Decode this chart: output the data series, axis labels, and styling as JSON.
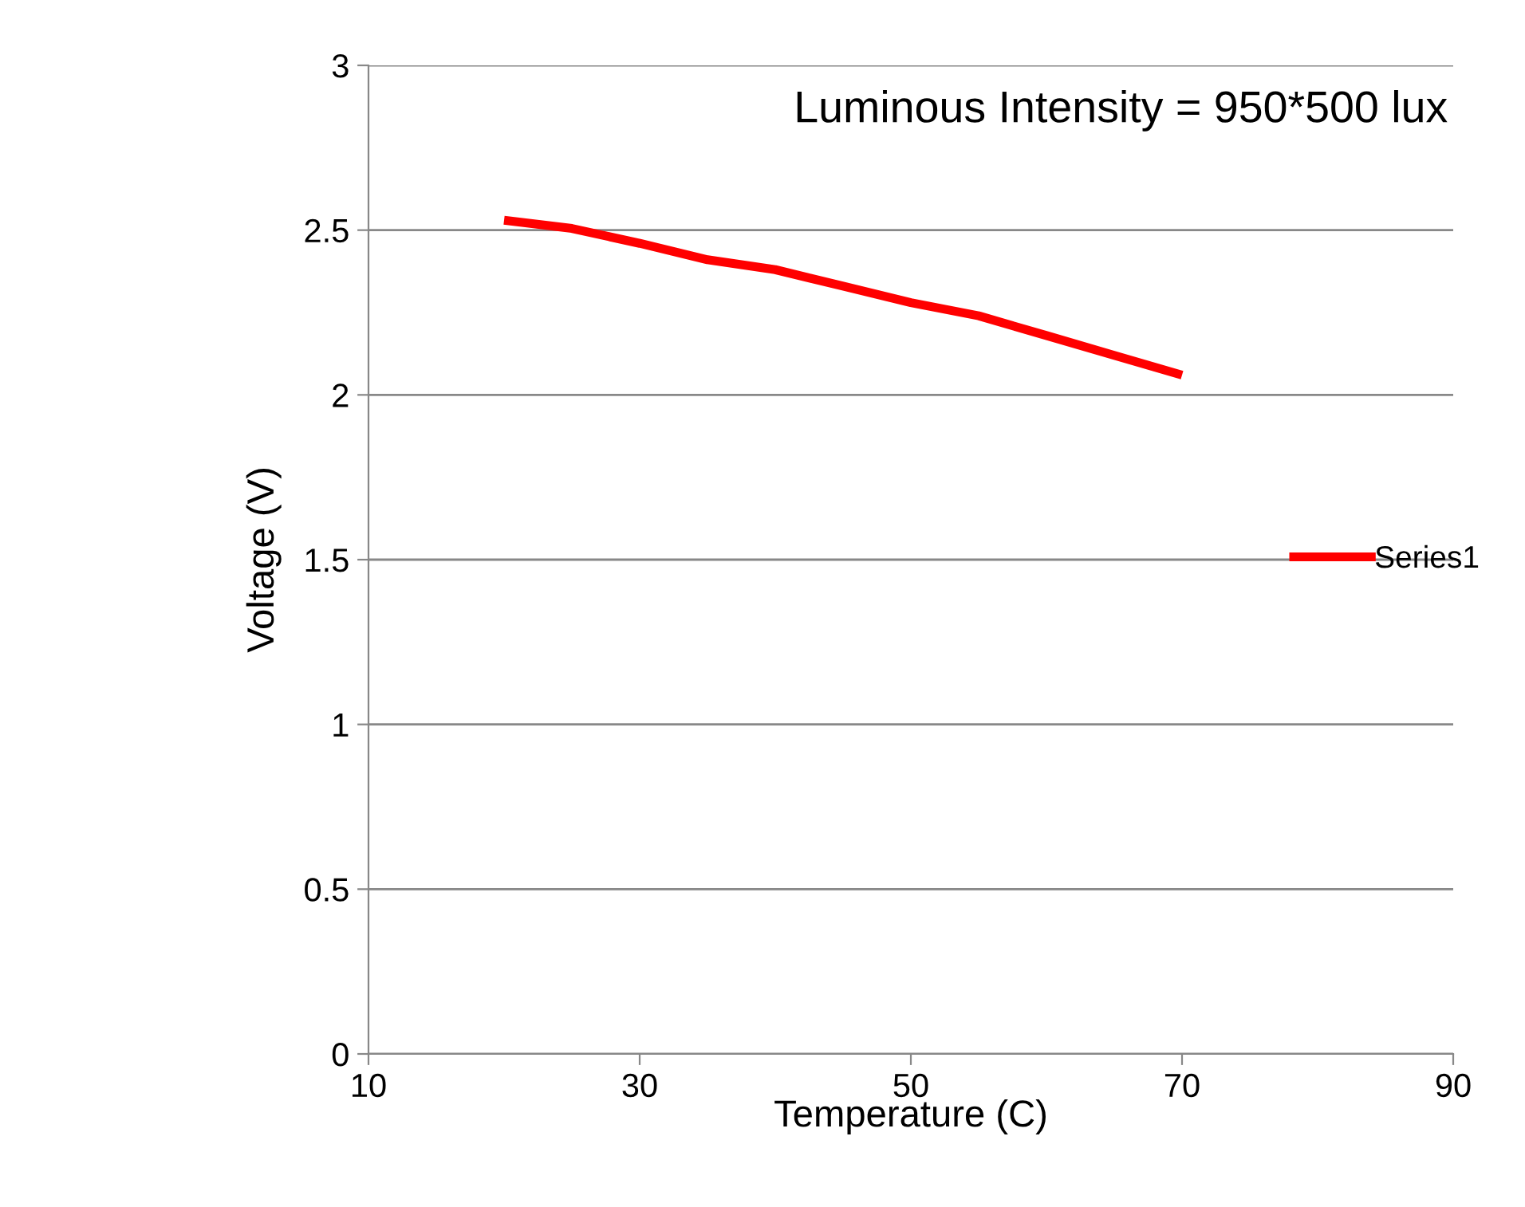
{
  "chart_data": {
    "type": "line",
    "annotations": [
      "Luminous Intensity = 950*500 lux"
    ],
    "xlabel": "Temperature (C)",
    "ylabel": "Voltage (V)",
    "x": [
      20,
      25,
      30,
      35,
      40,
      45,
      50,
      55,
      60,
      65,
      70
    ],
    "series": [
      {
        "name": "Series1",
        "color": "#ff0000",
        "values": [
          2.53,
          2.505,
          2.46,
          2.41,
          2.38,
          2.33,
          2.28,
          2.24,
          2.18,
          2.12,
          2.06
        ]
      }
    ],
    "xlim": [
      10,
      90
    ],
    "xticks": [
      10,
      30,
      50,
      70,
      90
    ],
    "ylim": [
      0,
      3
    ],
    "yticks": [
      0,
      0.5,
      1,
      1.5,
      2,
      2.5,
      3
    ],
    "grid": "y",
    "legend": "right",
    "marker": "none",
    "line_style": "solid"
  }
}
